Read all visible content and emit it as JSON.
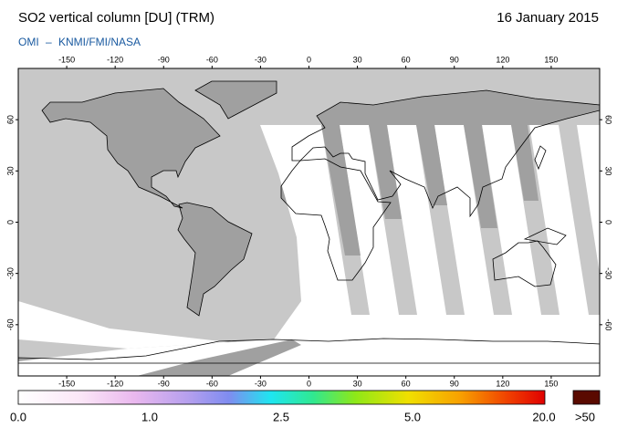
{
  "header": {
    "title": "SO2 vertical column [DU] (TRM)",
    "date": "16 January 2015",
    "source": "OMI – KNMI/FMI/NASA"
  },
  "map": {
    "lon_range": [
      -180,
      180
    ],
    "lat_range": [
      -90,
      90
    ],
    "lon_ticks": [
      -150,
      -120,
      -90,
      -60,
      -30,
      0,
      30,
      60,
      90,
      120,
      150
    ],
    "lat_ticks": [
      60,
      30,
      0,
      -30,
      -60
    ]
  },
  "colorbar": {
    "labels": [
      "0.0",
      "1.0",
      "2.5",
      "5.0",
      "20.0"
    ],
    "overflow_label": ">50"
  }
}
